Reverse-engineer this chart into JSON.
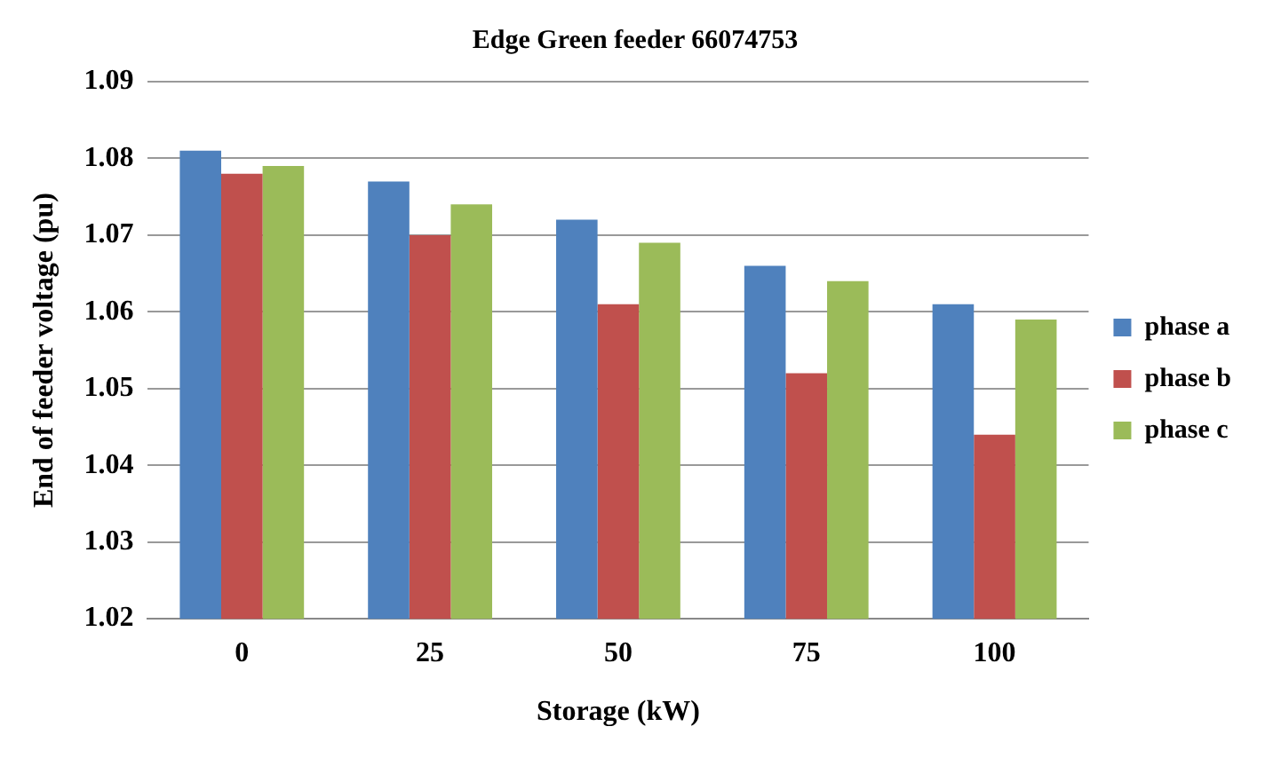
{
  "chart_data": {
    "type": "bar",
    "title": "Edge Green feeder 66074753",
    "xlabel": "Storage (kW)",
    "ylabel": "End of feeder voltage (pu)",
    "categories": [
      "0",
      "25",
      "50",
      "75",
      "100"
    ],
    "series": [
      {
        "name": "phase a",
        "color": "#4f81bd",
        "values": [
          1.081,
          1.077,
          1.072,
          1.066,
          1.061
        ]
      },
      {
        "name": "phase b",
        "color": "#c0504d",
        "values": [
          1.078,
          1.07,
          1.061,
          1.052,
          1.044
        ]
      },
      {
        "name": "phase c",
        "color": "#9bbb59",
        "values": [
          1.079,
          1.074,
          1.069,
          1.064,
          1.059
        ]
      }
    ],
    "ylim": [
      1.02,
      1.09
    ],
    "yticks": [
      1.02,
      1.03,
      1.04,
      1.05,
      1.06,
      1.07,
      1.08,
      1.09
    ],
    "grid": "y",
    "legend": "right"
  }
}
